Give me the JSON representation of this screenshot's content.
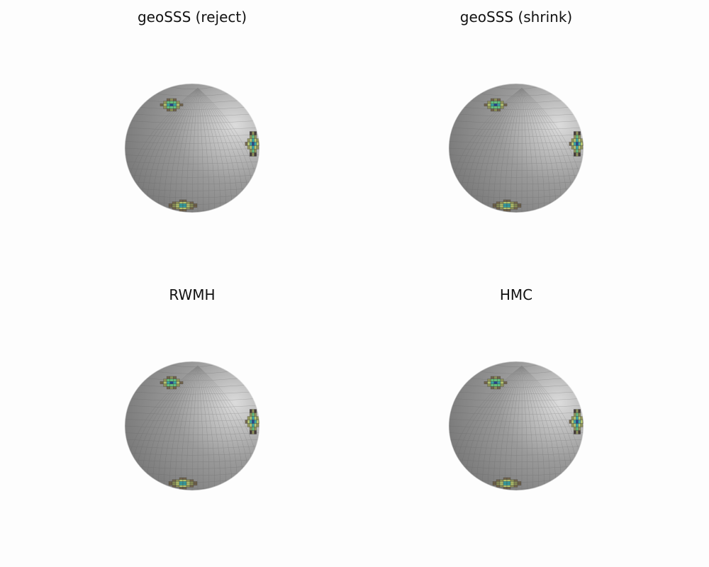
{
  "figure": {
    "background": "#fdfdfd"
  },
  "colors": {
    "sphere_light": "#dcdcdc",
    "sphere_mid": "#9a9a9a",
    "sphere_dark": "#6f6f6f",
    "mesh_line": "#5f5f5f",
    "density_colormap": [
      "#3b2f2f",
      "#6e5f45",
      "#8c8f52",
      "#b7c96a",
      "#5fc27a",
      "#2fa8a8",
      "#1f6fb0",
      "#1a3f8c"
    ]
  },
  "chart_data": [
    {
      "type": "surface",
      "title": "geoSSS (reject)",
      "grid": false,
      "axes_visible": false,
      "density_modes": 3
    },
    {
      "type": "surface",
      "title": "geoSSS (shrink)",
      "grid": false,
      "axes_visible": false,
      "density_modes": 3
    },
    {
      "type": "surface",
      "title": "RWMH",
      "grid": false,
      "axes_visible": false,
      "density_modes": 3
    },
    {
      "type": "surface",
      "title": "HMC",
      "grid": false,
      "axes_visible": false,
      "density_modes": 3
    }
  ]
}
